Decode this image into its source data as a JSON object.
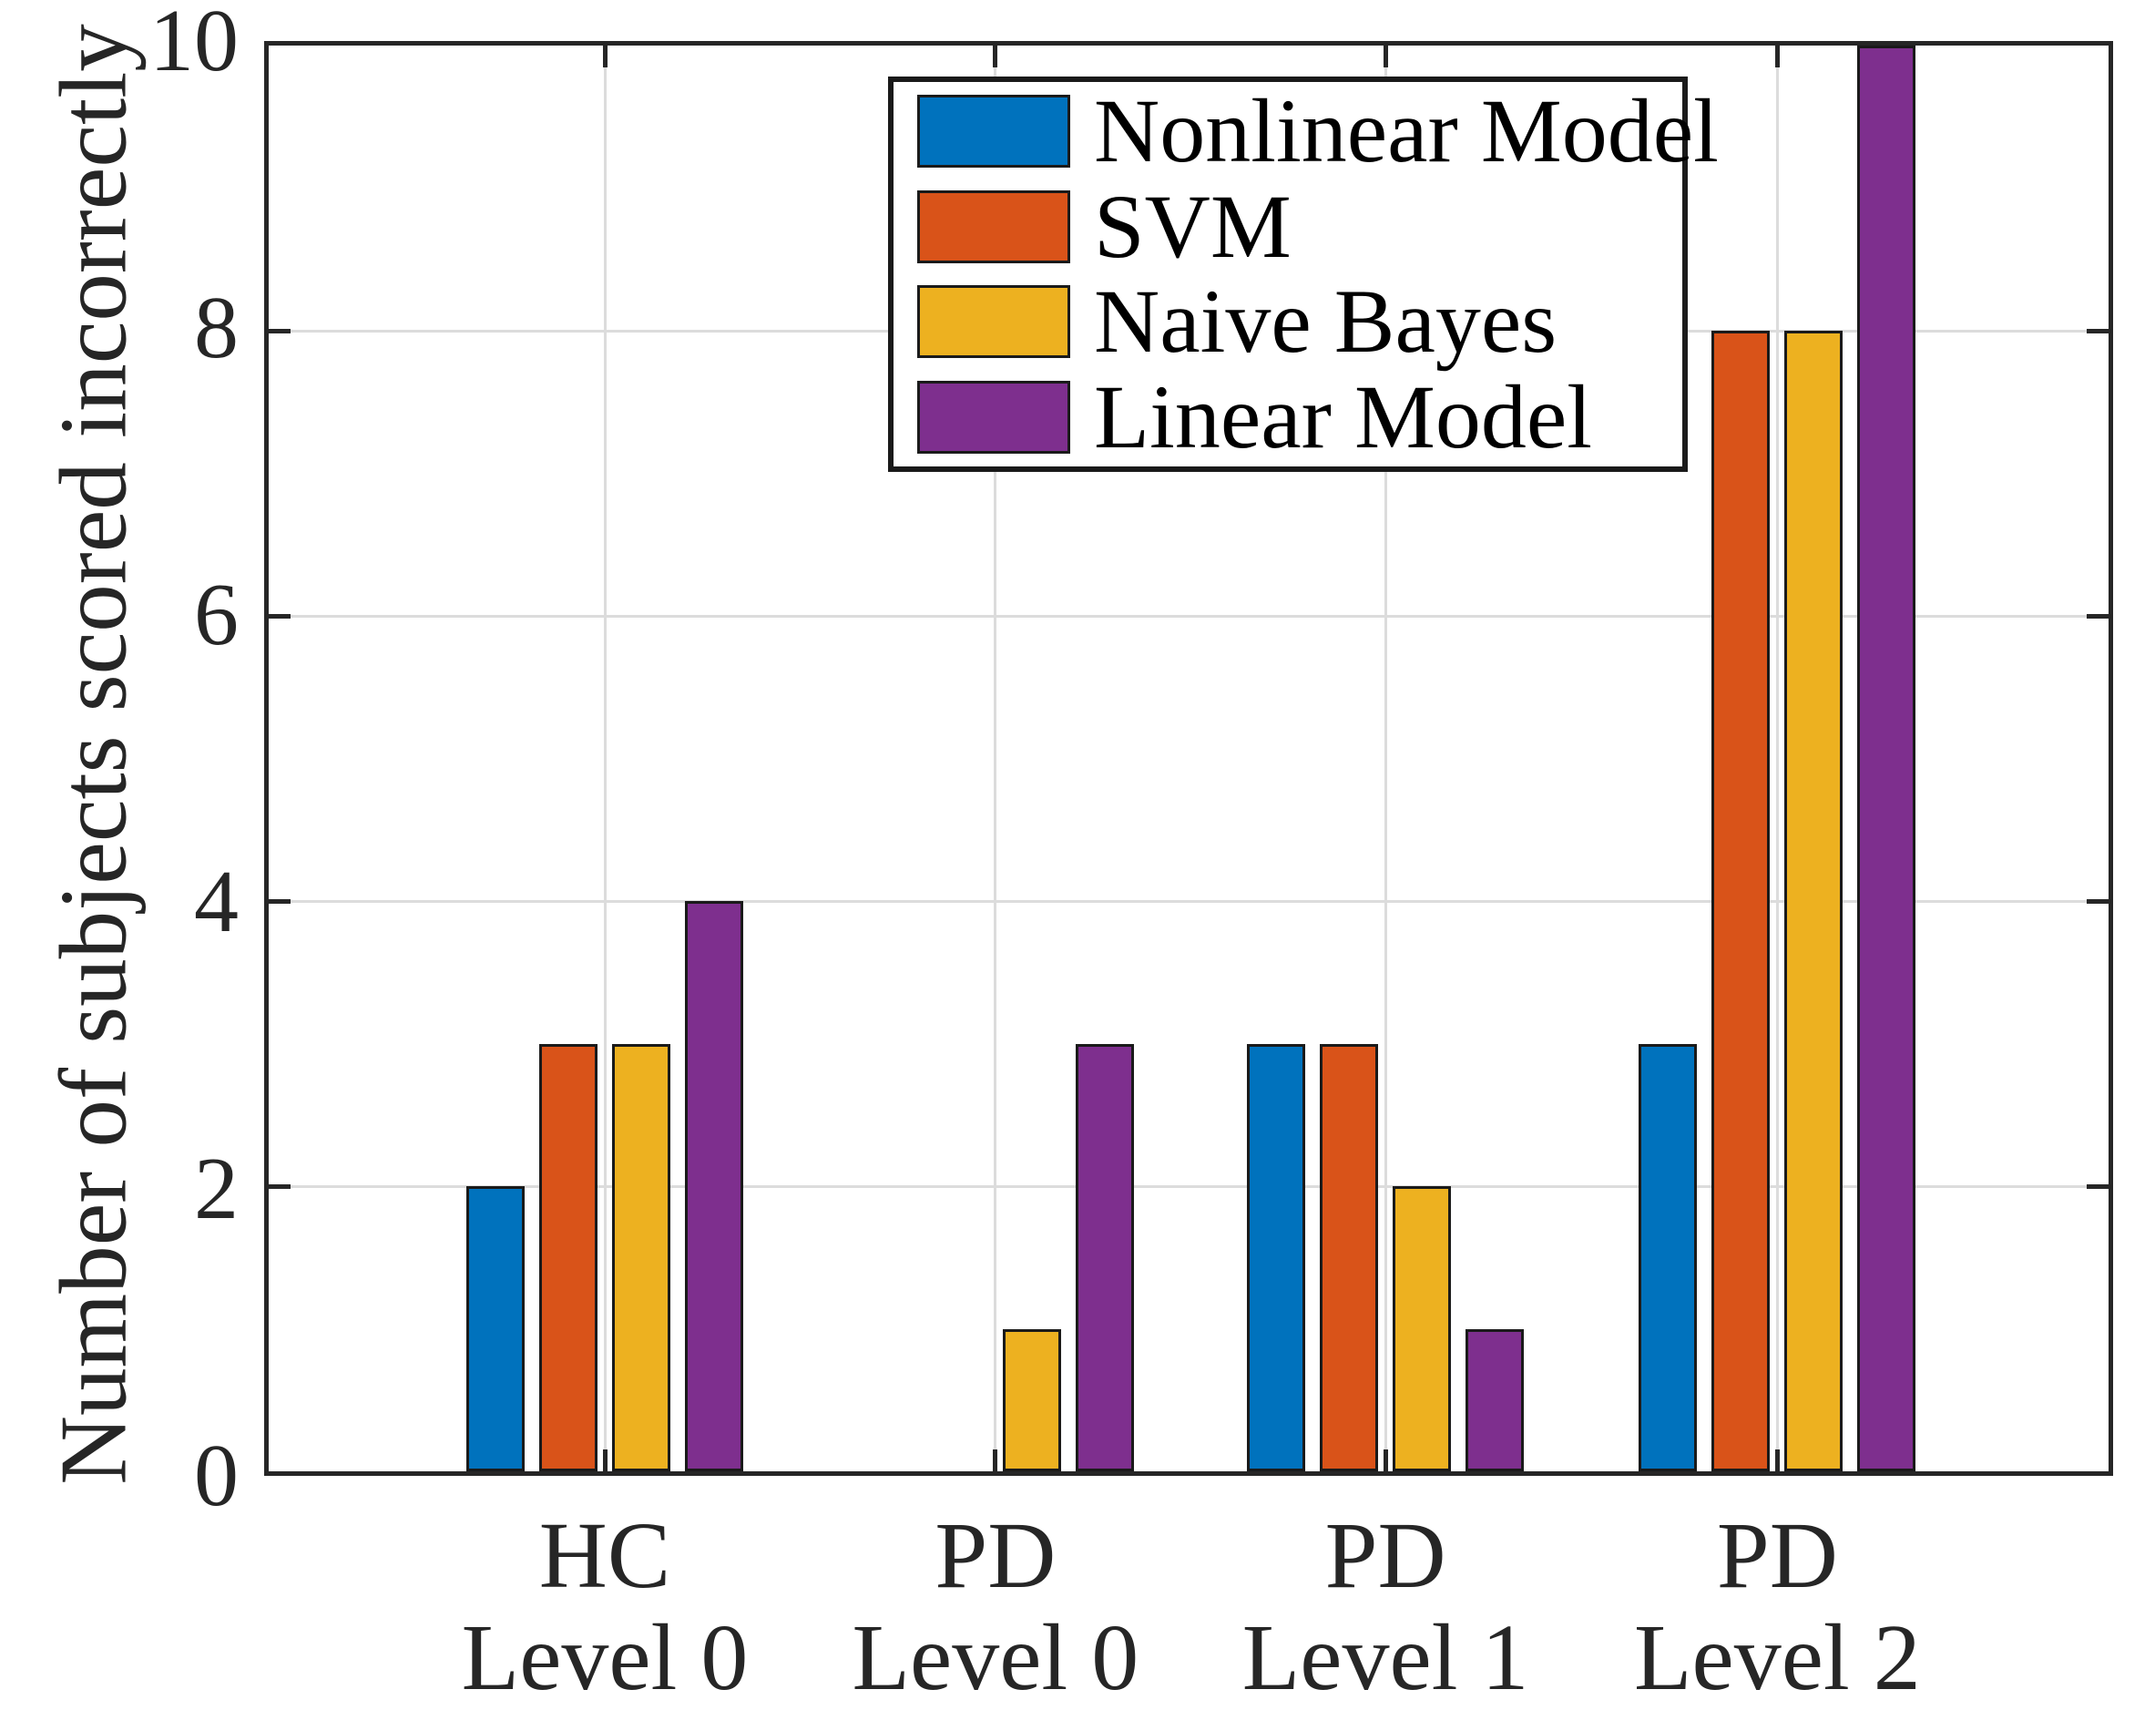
{
  "chart_data": {
    "type": "bar",
    "title": "",
    "xlabel": "",
    "ylabel": "Number of subjects scored incorrectly",
    "categories": [
      {
        "line1": "HC",
        "line2": "Level 0"
      },
      {
        "line1": "PD",
        "line2": "Level 0"
      },
      {
        "line1": "PD",
        "line2": "Level 1"
      },
      {
        "line1": "PD",
        "line2": "Level 2"
      }
    ],
    "series": [
      {
        "name": "Nonlinear Model",
        "color": "#0072BD",
        "values": [
          2,
          0,
          3,
          3
        ]
      },
      {
        "name": "SVM",
        "color": "#D95319",
        "values": [
          3,
          0,
          3,
          8
        ]
      },
      {
        "name": "Naive Bayes",
        "color": "#EDB120",
        "values": [
          3,
          1,
          2,
          8
        ]
      },
      {
        "name": "Linear Model",
        "color": "#7E2F8E",
        "values": [
          4,
          3,
          1,
          10
        ]
      }
    ],
    "y_ticks": [
      0,
      2,
      4,
      6,
      8,
      10
    ],
    "ylim": [
      0,
      10
    ],
    "grid": true,
    "legend_position": "inside-top-center",
    "axis_color": "#262626",
    "grid_color": "#dcdcdc",
    "bar_edge_color": "#1a1a1a",
    "background_color": "#ffffff"
  }
}
